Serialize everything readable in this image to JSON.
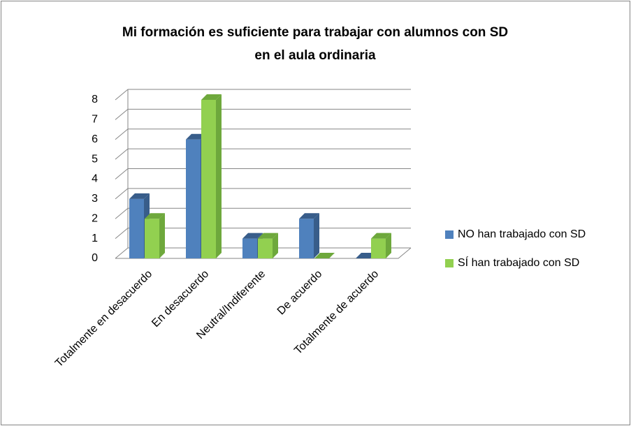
{
  "chart_data": {
    "type": "bar3d",
    "title": [
      "Mi formación es suficiente para trabajar con alumnos con SD",
      "en el aula ordinaria"
    ],
    "categories": [
      "Totalmente en desacuerdo",
      "En desacuerdo",
      "Neutral/Indiferente",
      "De acuerdo",
      "Totalmente de acuerdo"
    ],
    "series": [
      {
        "name": "NO han trabajado con SD",
        "color": "#4f81bd",
        "side": "#385d8a",
        "values": [
          3,
          6,
          1,
          2,
          0
        ]
      },
      {
        "name": "SÍ han trabajado con SD",
        "color": "#92d050",
        "side": "#6ea83c",
        "values": [
          2,
          8,
          1,
          0,
          1
        ]
      }
    ],
    "ylim": [
      0,
      8
    ],
    "yticks": [
      0,
      1,
      2,
      3,
      4,
      5,
      6,
      7,
      8
    ],
    "grid": true,
    "legend": "right"
  }
}
